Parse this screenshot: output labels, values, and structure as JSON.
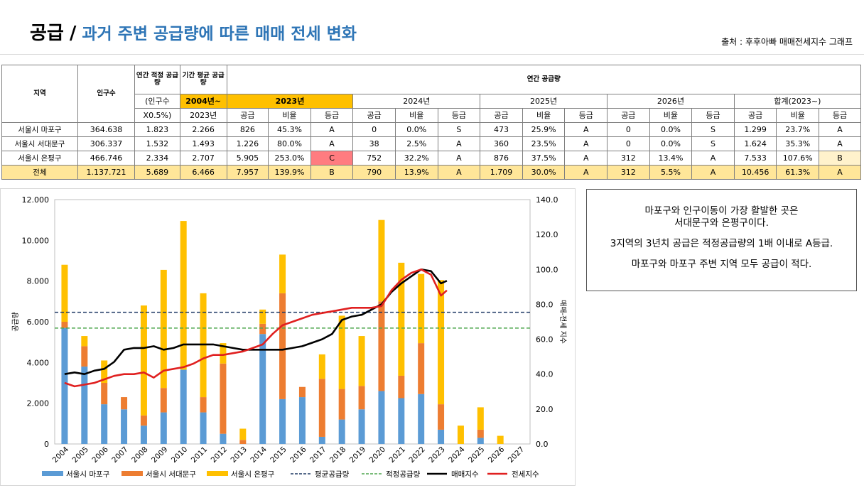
{
  "header": {
    "title_main": "공급",
    "title_slash": "/",
    "title_sub": "과거 주변 공급량에 따른 매매 전세 변화",
    "source": "출처 : 후후아빠 매매전세지수 그래프"
  },
  "table": {
    "h_region": "지역",
    "h_pop": "인구수",
    "h_annual_adequate": "연간 적정 공급량",
    "h_period_avg": "기간 평균 공급량",
    "h_annual_supply": "연간 공급량",
    "h_pop_note_1": "(인구수",
    "h_pop_note_2": "X0.5%)",
    "h_period_start": "2004년~",
    "h_period_end": "2023년",
    "years": [
      "2023년",
      "2024년",
      "2025년",
      "2026년",
      "합계(2023~)"
    ],
    "subcols": [
      "공급",
      "비율",
      "등급"
    ],
    "rows": [
      {
        "region": "서울시 마포구",
        "pop": "364.638",
        "adequate": "1.823",
        "avg": "2.266",
        "cells": [
          "826",
          "45.3%",
          "A",
          "0",
          "0.0%",
          "S",
          "473",
          "25.9%",
          "A",
          "0",
          "0.0%",
          "S",
          "1.299",
          "23.7%",
          "A"
        ]
      },
      {
        "region": "서울시 서대문구",
        "pop": "306.337",
        "adequate": "1.532",
        "avg": "1.493",
        "cells": [
          "1.226",
          "80.0%",
          "A",
          "38",
          "2.5%",
          "A",
          "360",
          "23.5%",
          "A",
          "0",
          "0.0%",
          "S",
          "1.624",
          "35.3%",
          "A"
        ]
      },
      {
        "region": "서울시 은평구",
        "pop": "466.746",
        "adequate": "2.334",
        "avg": "2.707",
        "cells": [
          "5.905",
          "253.0%",
          "C",
          "752",
          "32.2%",
          "A",
          "876",
          "37.5%",
          "A",
          "312",
          "13.4%",
          "A",
          "7.533",
          "107.6%",
          "B"
        ]
      },
      {
        "region": "전체",
        "pop": "1.137.721",
        "adequate": "5.689",
        "avg": "6.466",
        "cells": [
          "7.957",
          "139.9%",
          "B",
          "790",
          "13.9%",
          "A",
          "1.709",
          "30.0%",
          "A",
          "312",
          "5.5%",
          "A",
          "10.456",
          "61.3%",
          "A"
        ]
      }
    ]
  },
  "chart_data": {
    "type": "bar",
    "categories": [
      "2004",
      "2005",
      "2006",
      "2007",
      "2008",
      "2009",
      "2010",
      "2011",
      "2012",
      "2013",
      "2014",
      "2015",
      "2016",
      "2017",
      "2018",
      "2019",
      "2020",
      "2021",
      "2022",
      "2023",
      "2024",
      "2025",
      "2026",
      "2027"
    ],
    "series": [
      {
        "name": "서울시 마포구",
        "type": "stacked-bar",
        "color": "#5B9BD5",
        "values": [
          5700,
          3800,
          1950,
          1700,
          900,
          1550,
          3650,
          1550,
          500,
          0,
          5400,
          2200,
          2300,
          350,
          1200,
          1700,
          2600,
          2250,
          2450,
          700,
          0,
          300,
          0,
          0
        ]
      },
      {
        "name": "서울시 서대문구",
        "type": "stacked-bar",
        "color": "#ED7D31",
        "values": [
          300,
          1000,
          1050,
          600,
          500,
          1200,
          0,
          750,
          3450,
          200,
          500,
          5200,
          500,
          2850,
          1500,
          1150,
          4400,
          1100,
          2500,
          1250,
          0,
          400,
          0,
          0
        ]
      },
      {
        "name": "서울시 은평구",
        "type": "stacked-bar",
        "color": "#FFC000",
        "values": [
          2800,
          500,
          1100,
          0,
          5400,
          5800,
          7300,
          5100,
          1000,
          550,
          700,
          1900,
          0,
          1200,
          3600,
          2450,
          4000,
          5550,
          3400,
          6100,
          900,
          1100,
          400,
          0
        ]
      },
      {
        "name": "평균공급량",
        "type": "hline",
        "color": "#1F3864",
        "dash": "dashed",
        "value": 6466
      },
      {
        "name": "적정공급량",
        "type": "hline",
        "color": "#4EA64E",
        "dash": "dashed",
        "value": 5689
      },
      {
        "name": "매매지수",
        "type": "line",
        "axis": "right",
        "color": "#000000",
        "x": [
          2004,
          2004.5,
          2005,
          2005.5,
          2006,
          2006.5,
          2007,
          2007.5,
          2008,
          2008.5,
          2009,
          2009.5,
          2010,
          2010.5,
          2011,
          2011.5,
          2012,
          2012.5,
          2013,
          2013.5,
          2014,
          2014.5,
          2015,
          2015.5,
          2016,
          2016.5,
          2017,
          2017.5,
          2018,
          2018.5,
          2019,
          2019.5,
          2020,
          2020.5,
          2021,
          2021.5,
          2022,
          2022.5,
          2023,
          2023.3
        ],
        "values": [
          40,
          41,
          40,
          42,
          43,
          47,
          54,
          55,
          55,
          56,
          54,
          55,
          57,
          57,
          57,
          57,
          56,
          55,
          54,
          54,
          54,
          54,
          54,
          55,
          56,
          58,
          60,
          63,
          71,
          73,
          74,
          77,
          80,
          87,
          92,
          96,
          100,
          99,
          92,
          93.5
        ]
      },
      {
        "name": "전세지수",
        "type": "line",
        "axis": "right",
        "color": "#E02020",
        "x": [
          2004,
          2004.5,
          2005,
          2005.5,
          2006,
          2006.5,
          2007,
          2007.5,
          2008,
          2008.5,
          2009,
          2009.5,
          2010,
          2010.5,
          2011,
          2011.5,
          2012,
          2012.5,
          2013,
          2013.5,
          2014,
          2014.5,
          2015,
          2015.5,
          2016,
          2016.5,
          2017,
          2017.5,
          2018,
          2018.5,
          2019,
          2019.5,
          2020,
          2020.5,
          2021,
          2021.5,
          2022,
          2022.5,
          2023,
          2023.3
        ],
        "values": [
          35,
          33,
          34,
          35,
          37,
          39,
          40,
          40,
          41,
          38,
          42,
          43,
          44,
          46,
          49,
          51,
          51,
          52,
          53,
          55,
          57,
          63,
          68,
          70,
          72,
          74,
          75,
          76,
          77,
          78,
          78,
          78,
          79,
          88,
          94,
          98,
          100,
          97,
          85,
          88
        ]
      }
    ],
    "ylim": [
      0,
      12000
    ],
    "y2lim": [
      0,
      140
    ],
    "yticks": [
      "0",
      "2.000",
      "4.000",
      "6.000",
      "8.000",
      "10.000",
      "12.000"
    ],
    "y2ticks": [
      "0.0",
      "20.0",
      "40.0",
      "60.0",
      "80.0",
      "100.0",
      "120.0",
      "140.0"
    ],
    "ylabel": "공급량",
    "y2label": "매매-전세 지수",
    "legend_position": "bottom",
    "grid": false
  },
  "note": {
    "p1": "마포구와 인구이동이 가장 활발한 곳은\n서대문구와 은평구이다.",
    "p2": "3지역의 3년치 공급은 적정공급량의 1배 이내로 A등급.",
    "p3": "마포구와 마포구 주변 지역 모두 공급이 적다."
  }
}
